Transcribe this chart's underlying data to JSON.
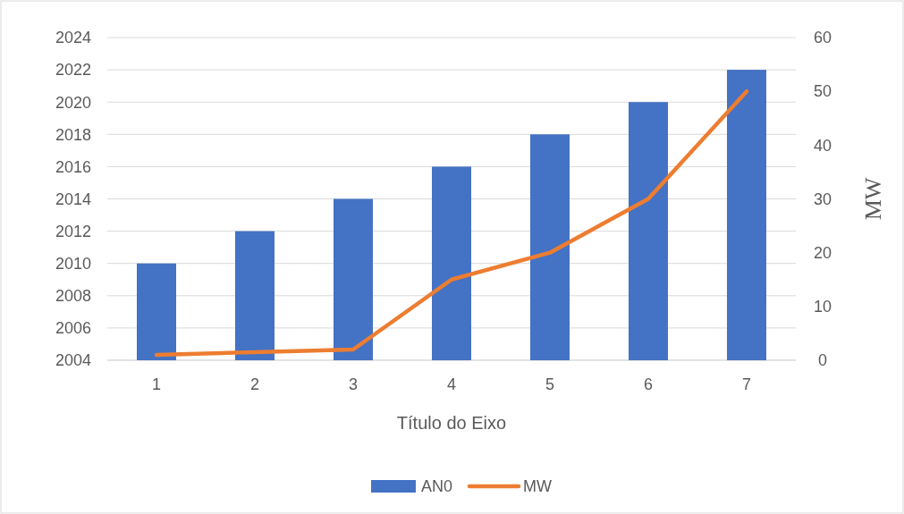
{
  "chart_data": {
    "type": "bar",
    "categories": [
      "1",
      "2",
      "3",
      "4",
      "5",
      "6",
      "7"
    ],
    "xlabel": "Título do Eixo",
    "y2label": "MW",
    "series": [
      {
        "name": "AN0",
        "color": "#4472c4",
        "values": [
          2010,
          2012,
          2014,
          2016,
          2018,
          2020,
          2022
        ]
      },
      {
        "name": "MW",
        "type": "line",
        "axis": "y2",
        "color": "#ed7d31",
        "values": [
          1,
          1.5,
          2,
          15,
          20,
          30,
          50
        ]
      }
    ],
    "ylim": [
      2004,
      2024
    ],
    "yticks": [
      2004,
      2006,
      2008,
      2010,
      2012,
      2014,
      2016,
      2018,
      2020,
      2022,
      2024
    ],
    "y2lim": [
      0,
      60
    ],
    "y2ticks": [
      0,
      10,
      20,
      30,
      40,
      50,
      60
    ],
    "grid": "y",
    "legend": "bottom",
    "marker": "none",
    "line_style": "solid"
  }
}
